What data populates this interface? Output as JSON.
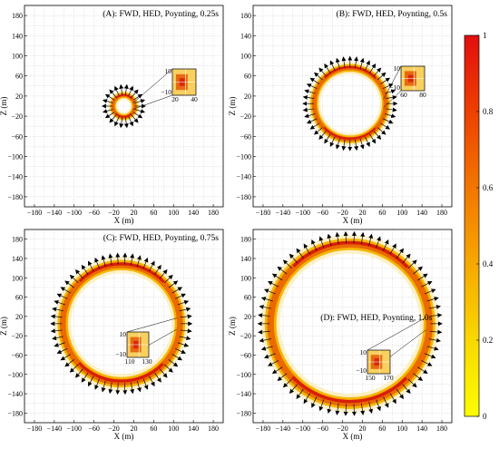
{
  "chart_data": [
    {
      "type": "heatmap",
      "title": "(A): FWD, HED, Poynting, 0.25s",
      "xlabel": "X (m)",
      "ylabel": "Z (m)",
      "xlim": [
        -200,
        200
      ],
      "ylim": [
        -200,
        200
      ],
      "xticks": [
        -180,
        -140,
        -100,
        -60,
        -20,
        20,
        60,
        100,
        140,
        180
      ],
      "yticks": [
        180,
        140,
        100,
        60,
        20,
        -20,
        -60,
        -100,
        -140,
        -180
      ],
      "grid": true,
      "ring": {
        "center": [
          0,
          0
        ],
        "radius": 22,
        "width": 9
      },
      "arrow_count": 22,
      "inset": {
        "x_ticks": [
          20,
          40
        ],
        "y_ticks": [
          10,
          -10
        ]
      }
    },
    {
      "type": "heatmap",
      "title": "(B): FWD, HED, Poynting, 0.5s",
      "xlabel": "X (m)",
      "ylabel": "Z (m)",
      "xlim": [
        -200,
        200
      ],
      "ylim": [
        -200,
        200
      ],
      "xticks": [
        -180,
        -140,
        -100,
        -60,
        -20,
        20,
        60,
        100,
        140,
        180
      ],
      "yticks": [
        180,
        140,
        100,
        60,
        20,
        -20,
        -60,
        -100,
        -140,
        -180
      ],
      "grid": true,
      "ring": {
        "center": [
          -5,
          5
        ],
        "radius": 72,
        "width": 12
      },
      "arrow_count": 44,
      "inset": {
        "x_ticks": [
          60,
          80
        ],
        "y_ticks": [
          10,
          -10
        ]
      }
    },
    {
      "type": "heatmap",
      "title": "(C): FWD, HED, Poynting, 0.75s",
      "xlabel": "X (m)",
      "ylabel": "Z (m)",
      "xlim": [
        -200,
        200
      ],
      "ylim": [
        -200,
        200
      ],
      "xticks": [
        -180,
        -140,
        -100,
        -60,
        -20,
        20,
        60,
        100,
        140,
        180
      ],
      "yticks": [
        180,
        140,
        100,
        60,
        20,
        -20,
        -60,
        -100,
        -140,
        -180
      ],
      "grid": true,
      "ring": {
        "center": [
          -5,
          5
        ],
        "radius": 118,
        "width": 16
      },
      "arrow_count": 58,
      "inset": {
        "x_ticks": [
          110,
          130
        ],
        "y_ticks": [
          10,
          -10
        ]
      }
    },
    {
      "type": "heatmap",
      "title": "(D): FWD, HED, Poynting, 1.0s",
      "xlabel": "X (m)",
      "ylabel": "Z (m)",
      "xlim": [
        -200,
        200
      ],
      "ylim": [
        -200,
        200
      ],
      "xticks": [
        -180,
        -140,
        -100,
        -60,
        -20,
        20,
        60,
        100,
        140,
        180
      ],
      "yticks": [
        180,
        140,
        100,
        60,
        20,
        -20,
        -60,
        -100,
        -140,
        -180
      ],
      "grid": true,
      "ring": {
        "center": [
          -5,
          5
        ],
        "radius": 160,
        "width": 18
      },
      "arrow_count": 66,
      "inset": {
        "x_ticks": [
          150,
          170
        ],
        "y_ticks": [
          10,
          -10
        ]
      }
    }
  ],
  "colorbar": {
    "ticks": [
      "1",
      "0.8",
      "0.6",
      "0.4",
      "0.2",
      "0"
    ],
    "values": [
      1,
      0.8,
      0.6,
      0.4,
      0.2,
      0
    ],
    "colors": [
      "#fdfd00",
      "#f9d800",
      "#f6a800",
      "#f27600",
      "#ed4000",
      "#e30e0e"
    ]
  }
}
